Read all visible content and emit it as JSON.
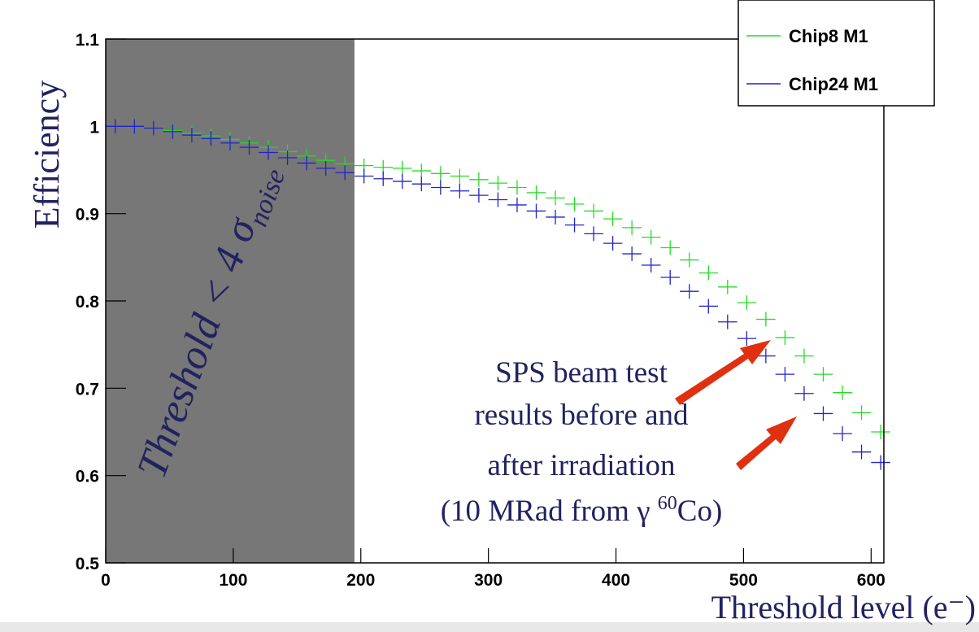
{
  "chart_data": {
    "type": "errorcross",
    "y_label": "Efficiency",
    "x_label": "Threshold level (e⁻)",
    "band_label": "Threshold < 4 σ",
    "band_label_sub": "noise",
    "annotation_lines": [
      "SPS beam test",
      "results before and",
      "after irradiation"
    ],
    "annotation_last": [
      "(10 MRad  from γ ",
      "60",
      "Co)"
    ],
    "shade_xlim": [
      0,
      195
    ],
    "shade_color": "#777777",
    "x": [
      7.5,
      22.5,
      37.5,
      52.5,
      67.5,
      82.5,
      97.5,
      112.5,
      127.5,
      142.5,
      157.5,
      172.5,
      187.5,
      202.5,
      217.5,
      232.5,
      247.5,
      262.5,
      277.5,
      292.5,
      307.5,
      322.5,
      337.5,
      352.5,
      367.5,
      382.5,
      397.5,
      412.5,
      427.5,
      442.5,
      457.5,
      472.5,
      487.5,
      502.5,
      517.5,
      532.5,
      547.5,
      562.5,
      577.5,
      592.5,
      607.5
    ],
    "series": [
      {
        "name": "Chip8 M1",
        "color": "#22dd22",
        "values": [
          1.0,
          1.0,
          0.998,
          0.995,
          0.992,
          0.989,
          0.985,
          0.981,
          0.976,
          0.971,
          0.966,
          0.961,
          0.957,
          0.955,
          0.953,
          0.952,
          0.949,
          0.946,
          0.943,
          0.939,
          0.935,
          0.93,
          0.924,
          0.918,
          0.911,
          0.903,
          0.894,
          0.884,
          0.873,
          0.861,
          0.847,
          0.832,
          0.816,
          0.798,
          0.779,
          0.758,
          0.737,
          0.716,
          0.695,
          0.672,
          0.65
        ]
      },
      {
        "name": "Chip24 M1",
        "color": "#2222cc",
        "values": [
          1.0,
          1.0,
          0.998,
          0.994,
          0.99,
          0.986,
          0.981,
          0.976,
          0.97,
          0.964,
          0.958,
          0.952,
          0.947,
          0.943,
          0.94,
          0.937,
          0.934,
          0.93,
          0.926,
          0.921,
          0.916,
          0.91,
          0.903,
          0.896,
          0.887,
          0.877,
          0.866,
          0.854,
          0.841,
          0.827,
          0.811,
          0.794,
          0.776,
          0.757,
          0.737,
          0.716,
          0.694,
          0.671,
          0.648,
          0.627,
          0.615
        ]
      }
    ],
    "xlim": [
      0,
      610
    ],
    "ylim": [
      0.5,
      1.1
    ],
    "xticks": [
      0,
      100,
      200,
      300,
      400,
      500,
      600
    ],
    "yticks": [
      0.5,
      0.6,
      0.7,
      0.8,
      0.9,
      1,
      1.1
    ],
    "legend": "top-right"
  }
}
